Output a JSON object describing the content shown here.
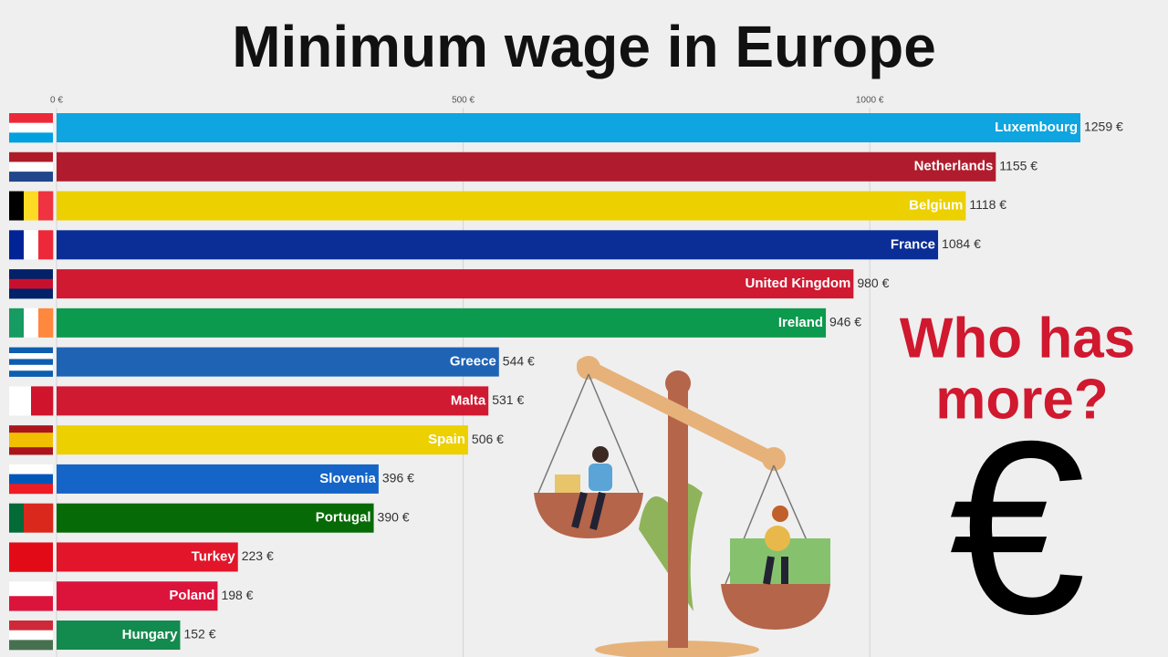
{
  "chart_data": {
    "type": "barh",
    "title": "Minimum wage in Europe",
    "annotation": [
      "Who has",
      "more?"
    ],
    "symbol": "€",
    "categories": [
      "Luxembourg",
      "Netherlands",
      "Belgium",
      "France",
      "United Kingdom",
      "Ireland",
      "Greece",
      "Malta",
      "Spain",
      "Slovenia",
      "Portugal",
      "Turkey",
      "Poland",
      "Hungary"
    ],
    "values": [
      1259,
      1155,
      1118,
      1084,
      980,
      946,
      544,
      531,
      506,
      396,
      390,
      223,
      198,
      152
    ],
    "value_labels": [
      "1259 €",
      "1155 €",
      "1118 €",
      "1084 €",
      "980 €",
      "946 €",
      "544 €",
      "531 €",
      "506 €",
      "396 €",
      "390 €",
      "223 €",
      "198 €",
      "152 €"
    ],
    "colors": [
      "#0ea5e0",
      "#b01c2e",
      "#ecd000",
      "#0a2d96",
      "#cf1a32",
      "#0c9a4e",
      "#1f63b5",
      "#cf1a32",
      "#ecd000",
      "#1565c8",
      "#066b06",
      "#e3152a",
      "#dc143c",
      "#138a4e"
    ],
    "xlim": [
      0,
      1360
    ],
    "xticks": [
      {
        "value": 0,
        "label": "0 €"
      },
      {
        "value": 500,
        "label": "500 €"
      },
      {
        "value": 1000,
        "label": "1000 €"
      }
    ],
    "grid": true
  }
}
